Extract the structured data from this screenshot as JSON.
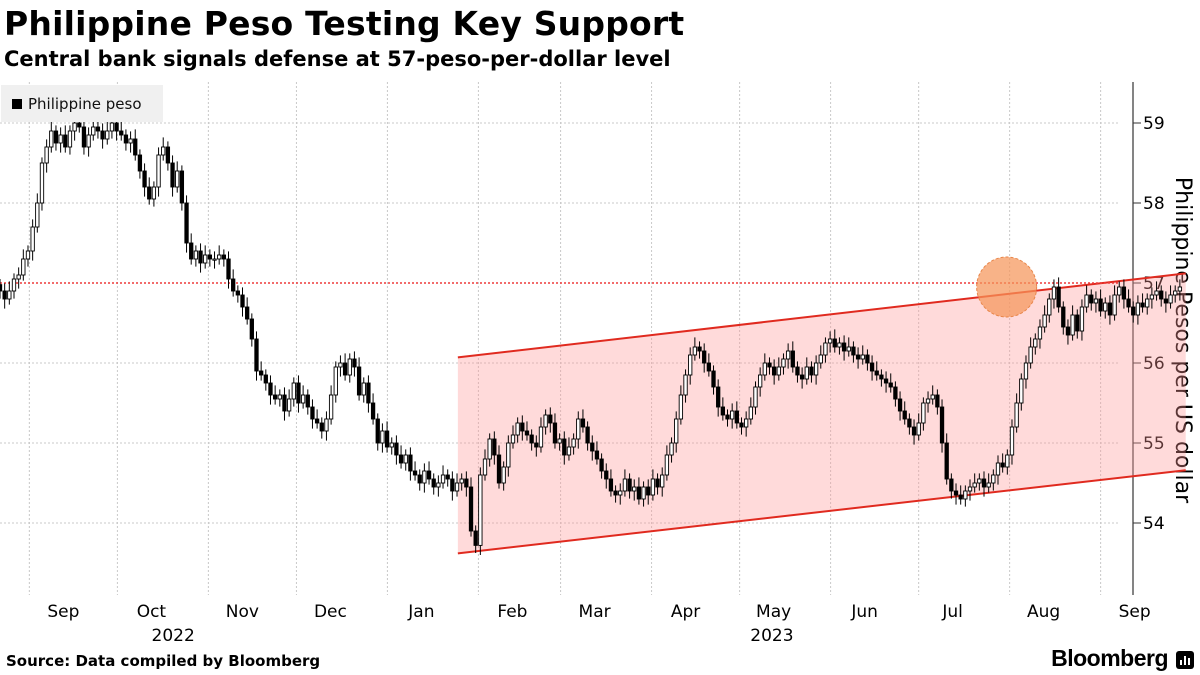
{
  "chart_data": {
    "type": "candlestick",
    "title": "Philippine Peso Testing Key Support",
    "subtitle": "Central bank signals defense at 57-peso-per-dollar level",
    "ylabel": "Philippine Pesos per US dollar",
    "xlabel": "",
    "ylim": [
      53.1,
      59.5
    ],
    "y_ticks": [
      54,
      55,
      56,
      57,
      58,
      59
    ],
    "grid": true,
    "legend": {
      "position": "top-left",
      "entries": [
        "Philippine peso"
      ]
    },
    "x_ticks": [
      {
        "label": "Sep",
        "date": "2022-09-01"
      },
      {
        "label": "Oct",
        "date": "2022-10-01"
      },
      {
        "label": "Nov",
        "date": "2022-11-01"
      },
      {
        "label": "Dec",
        "date": "2022-12-01"
      },
      {
        "label": "Jan",
        "date": "2023-01-01"
      },
      {
        "label": "Feb",
        "date": "2023-02-01"
      },
      {
        "label": "Mar",
        "date": "2023-03-01"
      },
      {
        "label": "Apr",
        "date": "2023-04-01"
      },
      {
        "label": "May",
        "date": "2023-05-01"
      },
      {
        "label": "Jun",
        "date": "2023-06-01"
      },
      {
        "label": "Jul",
        "date": "2023-07-01"
      },
      {
        "label": "Aug",
        "date": "2023-08-01"
      },
      {
        "label": "Sep",
        "date": "2023-09-01"
      }
    ],
    "year_labels": [
      {
        "label": "2022",
        "date": "2022-10-20"
      },
      {
        "label": "2023",
        "date": "2023-05-12"
      }
    ],
    "support_level": 57,
    "channel": {
      "start_date": "2023-01-25",
      "end_date": "2023-09-30",
      "upper": [
        56.07,
        57.12
      ],
      "lower": [
        53.62,
        54.66
      ]
    },
    "highlight": {
      "date": "2023-08-01",
      "value": 56.95
    },
    "series": [
      {
        "name": "Philippine peso",
        "close": [
          56.9,
          56.8,
          56.9,
          57.05,
          57.1,
          57.3,
          57.4,
          57.7,
          58.0,
          58.5,
          58.7,
          58.9,
          58.75,
          58.85,
          58.7,
          58.9,
          59.0,
          58.95,
          58.7,
          58.85,
          58.95,
          58.9,
          58.8,
          58.9,
          59.0,
          58.9,
          58.85,
          58.75,
          58.8,
          58.6,
          58.4,
          58.2,
          58.05,
          58.2,
          58.6,
          58.7,
          58.5,
          58.2,
          58.4,
          58.0,
          57.5,
          57.3,
          57.4,
          57.25,
          57.35,
          57.3,
          57.3,
          57.35,
          57.3,
          57.05,
          56.9,
          56.85,
          56.7,
          56.55,
          56.3,
          55.9,
          55.85,
          55.75,
          55.6,
          55.55,
          55.6,
          55.4,
          55.55,
          55.75,
          55.5,
          55.6,
          55.45,
          55.3,
          55.25,
          55.15,
          55.3,
          55.6,
          55.95,
          56.0,
          55.85,
          56.05,
          55.95,
          55.6,
          55.75,
          55.5,
          55.3,
          55.0,
          55.15,
          54.95,
          55.0,
          54.85,
          54.75,
          54.85,
          54.65,
          54.6,
          54.5,
          54.65,
          54.55,
          54.45,
          54.5,
          54.6,
          54.55,
          54.4,
          54.5,
          54.55,
          54.45,
          53.9,
          53.72,
          54.6,
          54.8,
          55.05,
          54.85,
          54.5,
          54.7,
          55.0,
          55.1,
          55.25,
          55.15,
          55.1,
          55.0,
          54.95,
          55.2,
          55.35,
          55.25,
          55.0,
          55.05,
          54.85,
          54.95,
          55.05,
          55.3,
          55.2,
          55.0,
          54.9,
          54.8,
          54.65,
          54.55,
          54.4,
          54.35,
          54.4,
          54.55,
          54.4,
          54.45,
          54.3,
          54.45,
          54.35,
          54.55,
          54.45,
          54.6,
          54.85,
          55.0,
          55.3,
          55.6,
          55.85,
          56.1,
          56.2,
          56.15,
          56.0,
          55.9,
          55.7,
          55.45,
          55.35,
          55.3,
          55.4,
          55.25,
          55.2,
          55.3,
          55.45,
          55.7,
          55.85,
          56.0,
          55.95,
          55.85,
          55.95,
          56.05,
          56.15,
          55.95,
          55.85,
          55.8,
          55.95,
          55.85,
          56.0,
          56.1,
          56.25,
          56.3,
          56.2,
          56.25,
          56.15,
          56.2,
          56.1,
          56.05,
          56.1,
          56.0,
          55.9,
          55.85,
          55.8,
          55.75,
          55.7,
          55.55,
          55.4,
          55.3,
          55.2,
          55.1,
          55.25,
          55.5,
          55.55,
          55.6,
          55.45,
          55.0,
          54.55,
          54.4,
          54.35,
          54.3,
          54.4,
          54.45,
          54.5,
          54.55,
          54.45,
          54.5,
          54.6,
          54.75,
          54.7,
          54.85,
          55.2,
          55.5,
          55.8,
          56.0,
          56.2,
          56.3,
          56.45,
          56.6,
          56.8,
          56.95,
          56.7,
          56.45,
          56.35,
          56.6,
          56.4,
          56.7,
          56.85,
          56.75,
          56.8,
          56.65,
          56.75,
          56.6,
          56.85,
          56.95,
          56.8,
          56.7,
          56.6,
          56.75,
          56.7,
          56.8,
          56.85,
          56.9,
          56.8,
          56.75,
          56.85,
          56.9,
          56.95
        ]
      }
    ],
    "source": "Source: Data compiled by Bloomberg",
    "brand": "Bloomberg"
  }
}
